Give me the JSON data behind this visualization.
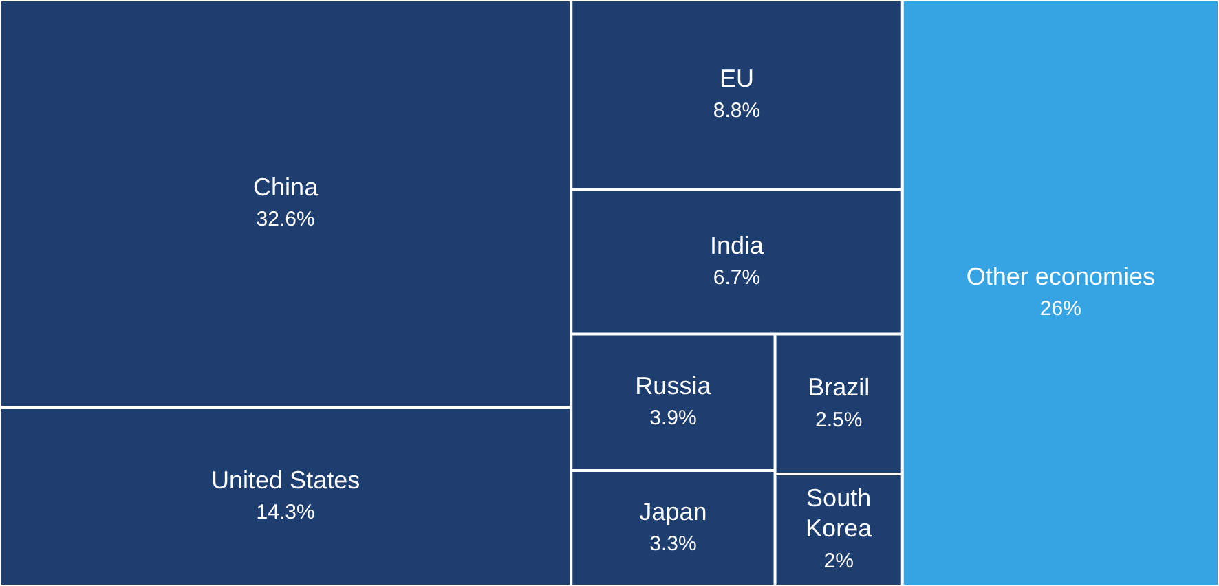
{
  "chart_data": {
    "type": "other",
    "categories": [
      "China",
      "United States",
      "EU",
      "India",
      "Russia",
      "Japan",
      "Brazil",
      "South Korea",
      "Other economies"
    ],
    "values": [
      32.6,
      14.3,
      8.8,
      6.7,
      3.9,
      3.3,
      2.5,
      2,
      26
    ],
    "value_labels": [
      "32.6%",
      "14.3%",
      "8.8%",
      "6.7%",
      "3.9%",
      "3.3%",
      "2.5%",
      "2%",
      "26%"
    ],
    "colors": [
      "#1f3e70",
      "#1f3e70",
      "#1f3e70",
      "#1f3e70",
      "#1f3e70",
      "#1f3e70",
      "#1f3e70",
      "#1f3e70",
      "#36a3e3"
    ]
  }
}
